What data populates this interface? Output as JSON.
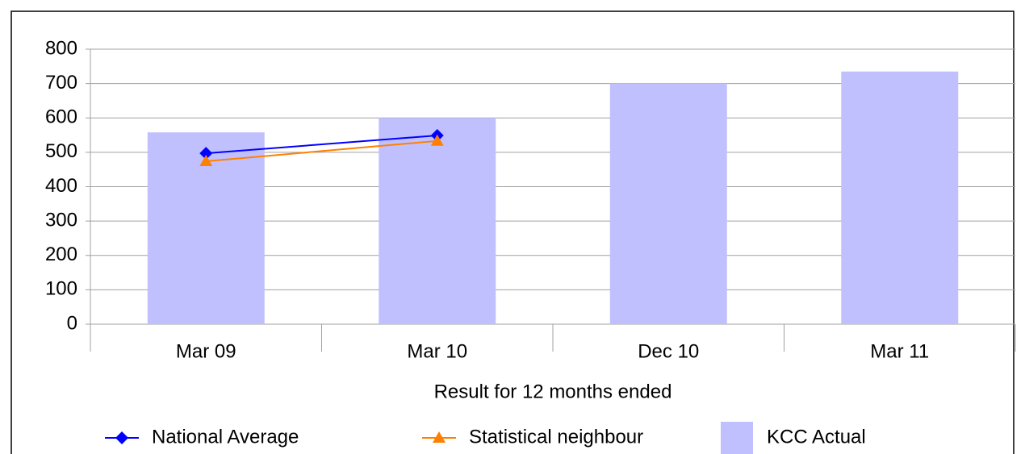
{
  "chart_data": {
    "type": "bar",
    "x_label": "Result for 12 months ended",
    "categories": [
      "Mar 09",
      "Mar 10",
      "Dec 10",
      "Mar 11"
    ],
    "series": [
      {
        "name": "National Average",
        "type": "line",
        "marker": "diamond",
        "color": "#0000ff",
        "values": [
          497,
          549,
          null,
          null
        ]
      },
      {
        "name": "Statistical neighbour",
        "type": "line",
        "marker": "triangle",
        "color": "#ff8000",
        "values": [
          474,
          533,
          null,
          null
        ]
      },
      {
        "name": "KCC Actual",
        "type": "bar",
        "color": "#c0c0ff",
        "values": [
          558,
          600,
          700,
          735
        ]
      }
    ],
    "ylim": [
      0,
      800
    ],
    "yticks": [
      0,
      100,
      200,
      300,
      400,
      500,
      600,
      700,
      800
    ],
    "grid": true,
    "legend": "bottom"
  }
}
